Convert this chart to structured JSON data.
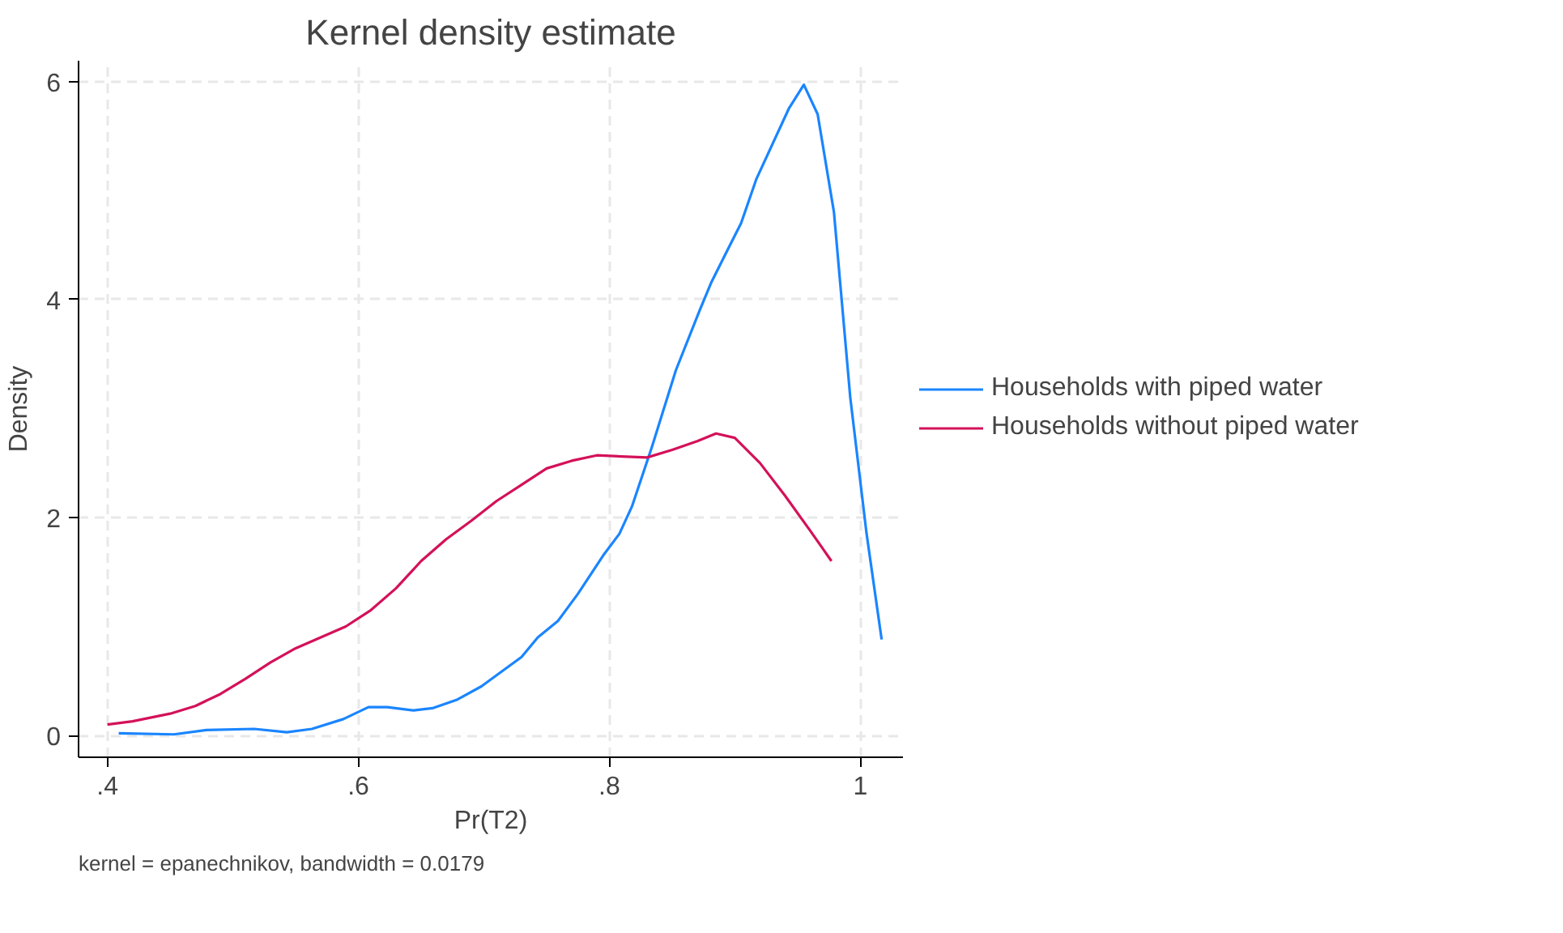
{
  "chart_data": {
    "type": "line",
    "title": "Kernel density estimate",
    "xlabel": "Pr(T2)",
    "ylabel": "Density",
    "annotations": [
      "kernel = epanechnikov, bandwidth = 0.0179"
    ],
    "xlim": [
      0.377,
      1.034
    ],
    "ylim": [
      -0.2,
      6.19
    ],
    "xticks": [
      {
        "value": 0.4,
        "label": ".4"
      },
      {
        "value": 0.6,
        "label": ".6"
      },
      {
        "value": 0.8,
        "label": ".8"
      },
      {
        "value": 1,
        "label": "1"
      }
    ],
    "yticks": [
      0,
      2,
      4,
      6
    ],
    "grid": true,
    "legend": "right",
    "line_style": "solid",
    "series": [
      {
        "name": "Households with piped water",
        "color": "#1a85ff",
        "x": [
          0.409,
          0.453,
          0.479,
          0.517,
          0.543,
          0.563,
          0.588,
          0.608,
          0.623,
          0.644,
          0.659,
          0.679,
          0.698,
          0.711,
          0.73,
          0.743,
          0.759,
          0.775,
          0.795,
          0.808,
          0.818,
          0.834,
          0.853,
          0.872,
          0.881,
          0.894,
          0.905,
          0.917,
          0.943,
          0.955,
          0.966,
          0.979,
          0.992,
          1.005,
          1.017
        ],
        "values": [
          0.02,
          0.01,
          0.05,
          0.06,
          0.03,
          0.06,
          0.15,
          0.26,
          0.26,
          0.23,
          0.25,
          0.33,
          0.45,
          0.56,
          0.72,
          0.9,
          1.05,
          1.3,
          1.65,
          1.85,
          2.1,
          2.65,
          3.35,
          3.9,
          4.15,
          4.45,
          4.7,
          5.1,
          5.75,
          5.97,
          5.7,
          4.8,
          3.1,
          1.85,
          0.88
        ]
      },
      {
        "name": "Households without piped water",
        "color": "#d41159",
        "x": [
          0.4,
          0.42,
          0.45,
          0.47,
          0.49,
          0.51,
          0.53,
          0.55,
          0.57,
          0.59,
          0.61,
          0.63,
          0.65,
          0.67,
          0.69,
          0.71,
          0.73,
          0.75,
          0.77,
          0.79,
          0.81,
          0.83,
          0.85,
          0.87,
          0.885,
          0.9,
          0.92,
          0.94,
          0.96,
          0.977
        ],
        "values": [
          0.1,
          0.13,
          0.2,
          0.27,
          0.38,
          0.52,
          0.67,
          0.8,
          0.9,
          1.0,
          1.15,
          1.35,
          1.6,
          1.8,
          1.97,
          2.15,
          2.3,
          2.45,
          2.52,
          2.57,
          2.56,
          2.55,
          2.62,
          2.7,
          2.77,
          2.73,
          2.5,
          2.2,
          1.88,
          1.6
        ]
      }
    ]
  }
}
